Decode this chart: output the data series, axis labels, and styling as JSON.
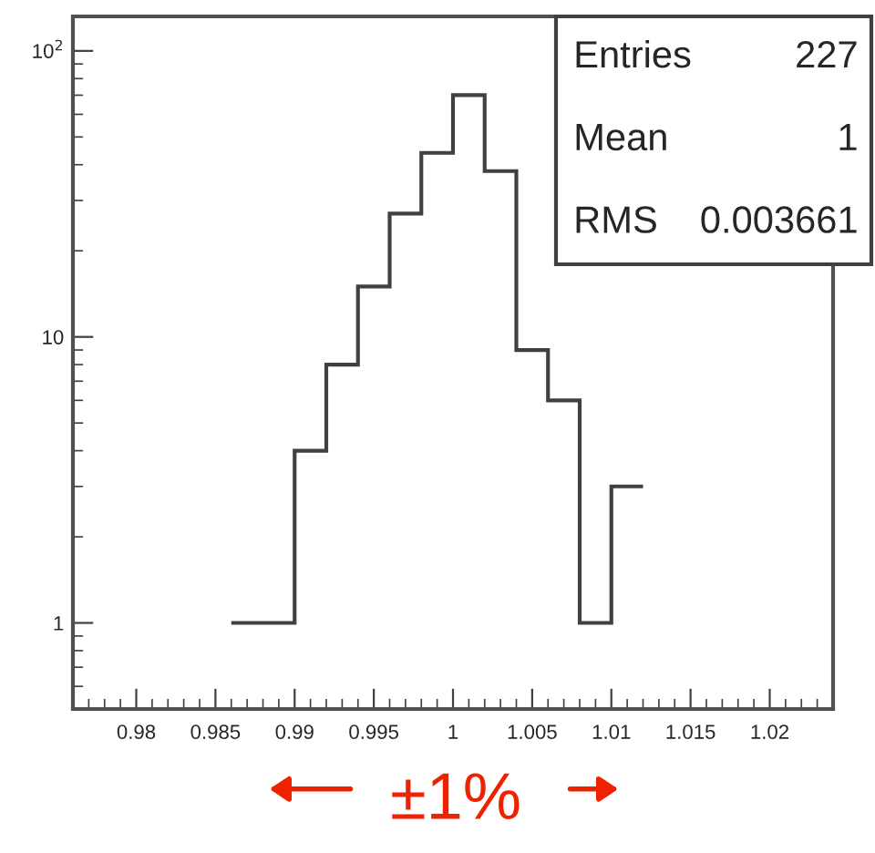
{
  "chart_data": {
    "type": "histogram",
    "bins": [
      0.986,
      0.988,
      0.99,
      0.992,
      0.994,
      0.996,
      0.998,
      1.0,
      1.002,
      1.004,
      1.006,
      1.008,
      1.01,
      1.012
    ],
    "values": [
      1,
      1,
      4,
      8,
      15,
      27,
      44,
      70,
      38,
      9,
      6,
      1,
      3
    ],
    "color": "#404040",
    "log": true,
    "xlim": [
      0.976,
      1.024
    ],
    "xticks": [
      0.98,
      0.985,
      0.99,
      0.995,
      1,
      1.005,
      1.01,
      1.015,
      1.02
    ],
    "ylim": [
      0.5,
      132
    ],
    "yticks": [
      1,
      10,
      {
        "value": 100,
        "label": "10$^{2}$"
      }
    ],
    "grid": false,
    "annotations": [
      "Entries",
      "227",
      "Mean",
      "1",
      "RMS",
      "0.003661",
      "±1%"
    ]
  }
}
